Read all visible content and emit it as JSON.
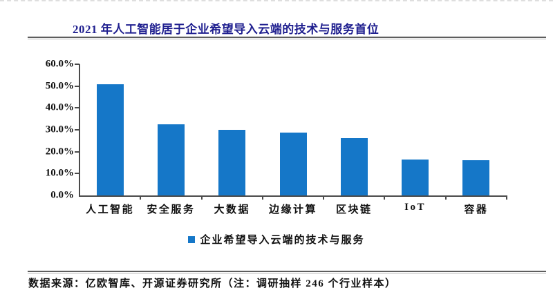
{
  "page": {
    "title": "2021 年人工智能居于企业希望导入云端的技术与服务首位",
    "source_note": "数据来源：亿欧智库、开源证券研究所（注：调研抽样 246 个行业样本）"
  },
  "colors": {
    "bar": "#1577C8",
    "title": "#1F1F8F",
    "axis": "#4a4a4a",
    "text": "#111111"
  },
  "chart_data": {
    "type": "bar",
    "title": "2021 年人工智能居于企业希望导入云端的技术与服务首位",
    "categories": [
      "人工智能",
      "安全服务",
      "大数据",
      "边缘计算",
      "区块链",
      "IoT",
      "容器"
    ],
    "values": [
      51.0,
      32.6,
      30.0,
      28.6,
      26.3,
      16.5,
      16.1
    ],
    "unit": "%",
    "xlabel": "",
    "ylabel": "",
    "ylim": [
      0,
      60
    ],
    "ytick_step": 10,
    "ytick_labels": [
      "0.0%",
      "10.0%",
      "20.0%",
      "30.0%",
      "40.0%",
      "50.0%",
      "60.0%"
    ],
    "grid": false,
    "legend_position": "bottom",
    "legend": [
      {
        "label": "企业希望导入云端的技术与服务",
        "color": "#1577C8"
      }
    ]
  }
}
